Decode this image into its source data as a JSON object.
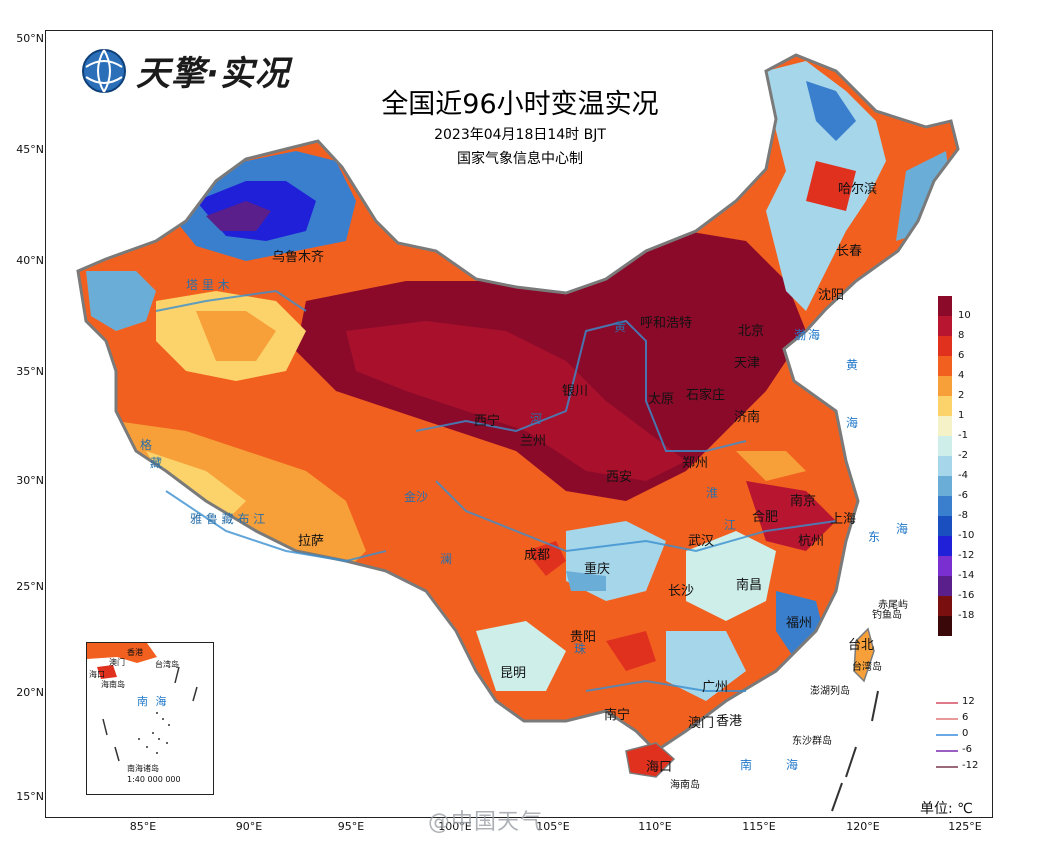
{
  "logo_text": "天擎·实况",
  "title": "全国近96小时变温实况",
  "subtitle": "2023年04月18日14时  BJT",
  "producer": "国家气象信息中心制",
  "lat_ticks": [
    "50°N",
    "45°N",
    "40°N",
    "35°N",
    "30°N",
    "25°N",
    "20°N",
    "15°N"
  ],
  "lon_ticks": [
    "85°E",
    "90°E",
    "95°E",
    "100°E",
    "105°E",
    "110°E",
    "115°E",
    "120°E",
    "125°E"
  ],
  "cities": {
    "urumqi": "乌鲁木齐",
    "harbin": "哈尔滨",
    "changchun": "长春",
    "shenyang": "沈阳",
    "beijing": "北京",
    "tianjin": "天津",
    "hohhot": "呼和浩特",
    "shijiazhuang": "石家庄",
    "taiyuan": "太原",
    "yinchuan": "银川",
    "xining": "西宁",
    "lanzhou": "兰州",
    "jinan": "济南",
    "zhengzhou": "郑州",
    "xian": "西安",
    "nanjing": "南京",
    "hefei": "合肥",
    "shanghai": "上海",
    "hangzhou": "杭州",
    "wuhan": "武汉",
    "chengdu": "成都",
    "chongqing": "重庆",
    "changsha": "长沙",
    "nanchang": "南昌",
    "lhasa": "拉萨",
    "guiyang": "贵阳",
    "kunming": "昆明",
    "fuzhou": "福州",
    "taibei": "台北",
    "guangzhou": "广州",
    "nanning": "南宁",
    "macao": "澳门",
    "hongkong": "香港",
    "haikou": "海口"
  },
  "seas": {
    "bohai": "渤海",
    "huanghai_1": "黄",
    "huanghai_2": "海",
    "donghai_1": "东",
    "donghai_2": "海",
    "nanhai_1": "南",
    "nanhai_2": "海"
  },
  "labels": {
    "tarim": "塔 里 木",
    "yalu": "雅 鲁 藏 布 江",
    "jinsha": "金沙",
    "lancang": "澜",
    "huanghe": "黄",
    "he": "河",
    "huai": "淮",
    "jiang": "江",
    "zhujiang": "珠",
    "kecheng": "格",
    "zang": "藏",
    "chiwei": "赤尾屿",
    "diaoyu": "钓鱼岛",
    "taiwan": "台湾岛",
    "penghu": "澎湖列岛",
    "dongsha": "东沙群岛",
    "hainan": "海南岛"
  },
  "inset": {
    "labels": [
      "澳门",
      "台湾岛",
      "香港",
      "海口",
      "海南岛",
      "南 海",
      "南海诸岛"
    ],
    "scale": "1:40 000 000"
  },
  "color_legend": {
    "labels": [
      "10",
      "8",
      "6",
      "4",
      "2",
      "1",
      "-1",
      "-2",
      "-4",
      "-6",
      "-8",
      "-10",
      "-12",
      "-14",
      "-16",
      "-18"
    ],
    "colors": [
      "#8b0a2a",
      "#b81530",
      "#e0301e",
      "#f2601f",
      "#f7a03a",
      "#fbd36a",
      "#f5f2c8",
      "#cdeee9",
      "#a6d6ea",
      "#6aaed8",
      "#3a7fcd",
      "#1a4fc0",
      "#1f20d8",
      "#7a2fd0",
      "#5a1f8a",
      "#7a0f10",
      "#3a0808"
    ]
  },
  "line_legend": [
    {
      "label": "12",
      "color": "#e07a8a"
    },
    {
      "label": "6",
      "color": "#e89a9a"
    },
    {
      "label": "0",
      "color": "#6aa8e6"
    },
    {
      "label": "-6",
      "color": "#9a5fc0"
    },
    {
      "label": "-12",
      "color": "#9a6a7a"
    }
  ],
  "unit": "单位: ℃",
  "watermark": "@中国天气"
}
